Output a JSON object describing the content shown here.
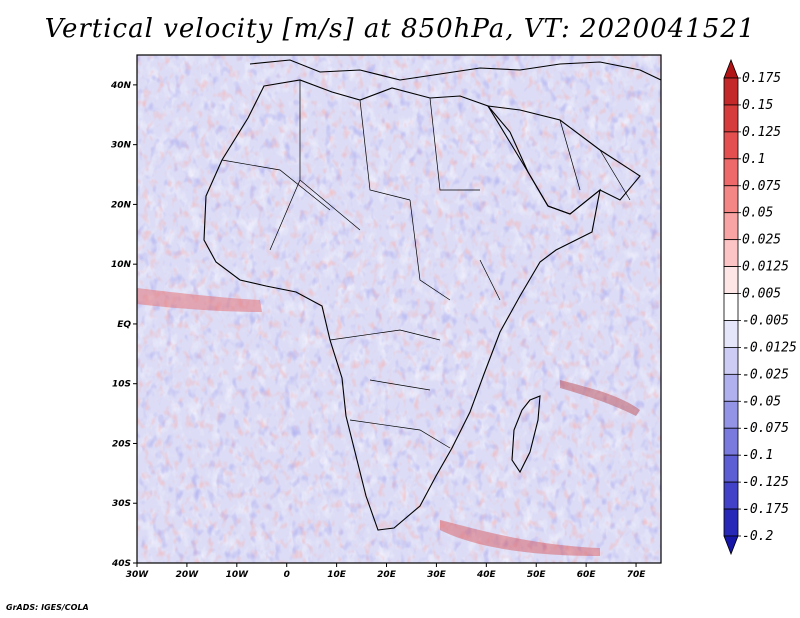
{
  "title": "Vertical velocity [m/s] at 850hPa, VT: 2020041521",
  "credit": "GrADS: IGES/COLA",
  "map": {
    "lon_range": [
      -30,
      75
    ],
    "lat_range": [
      -40,
      45
    ],
    "lon_ticks": [
      -30,
      -20,
      -10,
      0,
      10,
      20,
      30,
      40,
      50,
      60,
      70
    ],
    "lon_tick_labels": [
      "30W",
      "20W",
      "10W",
      "0",
      "10E",
      "20E",
      "30E",
      "40E",
      "50E",
      "60E",
      "70E"
    ],
    "lat_ticks": [
      40,
      30,
      20,
      10,
      0,
      -10,
      -20,
      -30,
      -40
    ],
    "lat_tick_labels": [
      "40N",
      "30N",
      "20N",
      "10N",
      "EQ",
      "10S",
      "20S",
      "30S",
      "40S"
    ]
  },
  "colorbar": {
    "labels": [
      "0.175",
      "0.15",
      "0.125",
      "0.1",
      "0.075",
      "0.05",
      "0.025",
      "0.0125",
      "0.005",
      "-0.005",
      "-0.0125",
      "-0.025",
      "-0.05",
      "-0.075",
      "-0.1",
      "-0.125",
      "-0.175",
      "-0.2"
    ],
    "colors": [
      "#b01414",
      "#c42828",
      "#d63c3c",
      "#e45050",
      "#ee6a6a",
      "#f48686",
      "#f8a4a4",
      "#fcc4c4",
      "#fee6e6",
      "#ffffff",
      "#e6e6fa",
      "#ccccf4",
      "#b0b0ee",
      "#9494e6",
      "#7a7ade",
      "#5e5ed4",
      "#4242c8",
      "#2828b8",
      "#1616a8"
    ]
  },
  "field_colors": {
    "background": "#dcdcf6",
    "rising": "#e84848",
    "sinking": "#5a5ad8",
    "coast": "#000000"
  }
}
